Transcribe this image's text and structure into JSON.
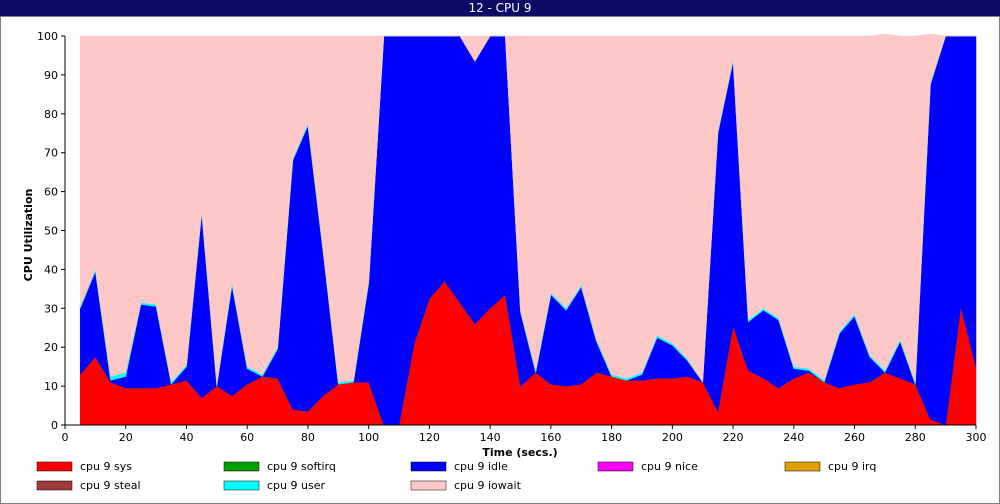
{
  "window": {
    "title": "12 - CPU 9"
  },
  "chart_data": {
    "type": "area",
    "stacked": true,
    "xlabel": "Time (secs.)",
    "ylabel": "CPU Utilization",
    "xlim": [
      0,
      300
    ],
    "ylim": [
      0,
      100
    ],
    "xticks": [
      0,
      20,
      40,
      60,
      80,
      100,
      120,
      140,
      160,
      180,
      200,
      220,
      240,
      260,
      280,
      300
    ],
    "yticks": [
      0,
      10,
      20,
      30,
      40,
      50,
      60,
      70,
      80,
      90,
      100
    ],
    "x": [
      5,
      10,
      15,
      20,
      25,
      30,
      35,
      40,
      45,
      50,
      55,
      60,
      65,
      70,
      75,
      80,
      85,
      90,
      95,
      100,
      105,
      110,
      115,
      120,
      125,
      130,
      135,
      140,
      145,
      150,
      155,
      160,
      165,
      170,
      175,
      180,
      185,
      190,
      195,
      200,
      205,
      210,
      215,
      220,
      225,
      230,
      235,
      240,
      245,
      250,
      255,
      260,
      265,
      270,
      275,
      280,
      285,
      290,
      295,
      300
    ],
    "series": [
      {
        "name": "cpu 9 sys",
        "color": "#ff0000",
        "values": [
          13,
          17.5,
          11,
          9.5,
          9.5,
          9.5,
          10.5,
          11.5,
          7,
          10,
          7.5,
          10.5,
          12.5,
          12,
          4,
          3.5,
          7.5,
          10.5,
          11,
          11,
          0,
          0,
          21,
          32.5,
          37,
          31.5,
          26,
          30,
          33.5,
          10,
          13.5,
          10.5,
          10,
          10.5,
          13.5,
          12.5,
          11.5,
          11.5,
          12,
          12,
          12.5,
          11,
          3.5,
          25.5,
          14,
          12,
          9.5,
          12,
          13.5,
          11,
          9.5,
          10.5,
          11,
          13.5,
          12,
          10.5,
          1.5,
          0,
          30.5,
          15
        ]
      },
      {
        "name": "cpu 9 softirq",
        "color": "#00a000",
        "values": [
          0,
          0,
          0,
          0,
          0,
          0,
          0,
          0,
          0,
          0,
          0,
          0,
          0,
          0,
          0,
          0,
          0,
          0,
          0,
          0,
          0,
          0,
          0,
          0,
          0,
          0,
          0,
          0,
          0,
          0,
          0,
          0,
          0,
          0,
          0,
          0,
          0,
          0,
          0,
          0,
          0,
          0,
          0,
          0,
          0,
          0,
          0,
          0,
          0,
          0,
          0,
          0,
          0,
          0,
          0,
          0,
          0,
          0,
          0,
          0
        ]
      },
      {
        "name": "cpu 9 idle",
        "color": "#0000ff",
        "values": [
          17,
          22,
          0.5,
          3,
          21.5,
          21,
          0,
          3.5,
          47.5,
          0,
          28.5,
          4,
          0,
          7.5,
          64,
          73.5,
          37,
          0,
          0,
          25.5,
          100,
          100,
          79,
          67.5,
          63,
          68.5,
          67.5,
          70,
          66.5,
          19,
          0,
          23,
          19.5,
          25,
          8,
          0,
          0,
          1.5,
          10.5,
          8.5,
          4,
          0,
          71.5,
          68,
          12.5,
          17.5,
          17.5,
          2.5,
          0.5,
          0,
          14,
          17.5,
          6.5,
          0,
          9.5,
          0,
          86,
          100,
          69.5,
          85
        ]
      },
      {
        "name": "cpu 9 nice",
        "color": "#ff00ff",
        "values": [
          0,
          0,
          0,
          0,
          0,
          0,
          0,
          0,
          0,
          0,
          0,
          0,
          0,
          0,
          0,
          0,
          0,
          0,
          0,
          0,
          0,
          0,
          0,
          0,
          0,
          0,
          0,
          0,
          0,
          0,
          0,
          0,
          0,
          0,
          0,
          0,
          0,
          0,
          0,
          0,
          0,
          0,
          0,
          0,
          0,
          0,
          0,
          0,
          0,
          0,
          0,
          0,
          0,
          0,
          0,
          0,
          0,
          0,
          0,
          0
        ]
      },
      {
        "name": "cpu 9 irq",
        "color": "#e0a000",
        "values": [
          0,
          0,
          0,
          0,
          0,
          0,
          0,
          0,
          0,
          0,
          0,
          0,
          0,
          0,
          0,
          0,
          0,
          0,
          0,
          0,
          0,
          0,
          0,
          0,
          0,
          0,
          0,
          0,
          0,
          0,
          0,
          0,
          0,
          0,
          0,
          0,
          0,
          0,
          0,
          0,
          0,
          0,
          0,
          0,
          0,
          0,
          0,
          0,
          0,
          0,
          0,
          0,
          0,
          0,
          0,
          0,
          0,
          0,
          0,
          0
        ]
      },
      {
        "name": "cpu 9 steal",
        "color": "#a03c3c",
        "values": [
          0,
          0,
          0,
          0,
          0,
          0,
          0,
          0,
          0,
          0,
          0,
          0,
          0,
          0,
          0,
          0,
          0,
          0,
          0,
          0,
          0,
          0,
          0,
          0,
          0,
          0,
          0,
          0,
          0,
          0,
          0,
          0,
          0,
          0,
          0,
          0,
          0,
          0,
          0,
          0,
          0,
          0,
          0,
          0,
          0,
          0,
          0,
          0,
          0,
          0,
          0,
          0,
          0,
          0,
          0,
          0,
          0,
          0,
          0,
          0
        ]
      },
      {
        "name": "cpu 9 user",
        "color": "#00ffff",
        "values": [
          0.5,
          0.5,
          1,
          1,
          0.5,
          0.5,
          0.5,
          0.5,
          0.5,
          0.5,
          0.5,
          0.5,
          0.5,
          0.5,
          0.5,
          0.5,
          0.5,
          0.5,
          0.5,
          0.5,
          0,
          0,
          0,
          0,
          0,
          0,
          0,
          0,
          0,
          0.5,
          0.5,
          0.5,
          0.5,
          0.5,
          0.5,
          0.5,
          0.5,
          0.5,
          0.5,
          0.5,
          0.5,
          0,
          0.5,
          0.5,
          0.5,
          0.5,
          0.5,
          0.5,
          0.5,
          0.5,
          0.5,
          0.5,
          0.5,
          0.5,
          0.5,
          0.5,
          0.5,
          0,
          0,
          0
        ]
      },
      {
        "name": "cpu 9 iowait",
        "color": "#ffc8c8",
        "values": [
          69.5,
          60,
          87.5,
          86.5,
          68.5,
          69,
          89,
          84.5,
          45,
          89.5,
          63.5,
          85,
          87,
          80,
          31.5,
          22.5,
          55,
          89,
          88.5,
          63,
          0,
          0,
          0,
          0,
          0,
          0,
          6.5,
          0,
          0,
          70.5,
          86,
          66,
          70,
          64,
          78,
          87,
          88,
          86.5,
          77,
          79,
          83,
          89,
          24.5,
          6,
          73,
          70,
          72.5,
          85,
          85.5,
          88.5,
          76,
          71.5,
          82,
          86.5,
          78,
          89,
          12.5,
          0,
          0,
          0
        ]
      }
    ],
    "legend": {
      "placement": "bottom",
      "entries": [
        "cpu 9 sys",
        "cpu 9 softirq",
        "cpu 9 idle",
        "cpu 9 nice",
        "cpu 9 irq",
        "cpu 9 steal",
        "cpu 9 user",
        "cpu 9 iowait"
      ]
    }
  }
}
